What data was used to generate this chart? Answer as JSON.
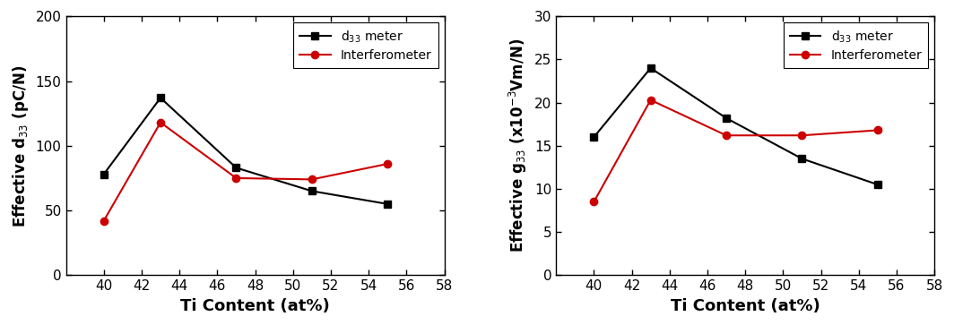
{
  "left": {
    "x": [
      40,
      43,
      47,
      51,
      55
    ],
    "black_y": [
      78,
      137,
      83,
      65,
      55
    ],
    "red_y": [
      42,
      118,
      75,
      74,
      86
    ],
    "ylabel": "Effective d$_{33}$ (pC/N)",
    "xlabel": "Ti Content (at%)",
    "ylim": [
      0,
      200
    ],
    "yticks": [
      0,
      50,
      100,
      150,
      200
    ],
    "xlim": [
      38,
      58
    ],
    "xticks": [
      40,
      42,
      44,
      46,
      48,
      50,
      52,
      54,
      56,
      58
    ]
  },
  "right": {
    "x": [
      40,
      43,
      47,
      51,
      55
    ],
    "black_y": [
      16.0,
      24.0,
      18.2,
      13.5,
      10.5
    ],
    "red_y": [
      8.5,
      20.3,
      16.2,
      16.2,
      16.8
    ],
    "ylabel": "Effective g$_{33}$ (x10$^{-3}$Vm/N)",
    "xlabel": "Ti Content (at%)",
    "ylim": [
      0,
      30
    ],
    "yticks": [
      0,
      5,
      10,
      15,
      20,
      25,
      30
    ],
    "xlim": [
      38,
      58
    ],
    "xticks": [
      40,
      42,
      44,
      46,
      48,
      50,
      52,
      54,
      56,
      58
    ]
  },
  "legend_black": "d$_{33}$ meter",
  "legend_red": "Interferometer",
  "black_color": "#000000",
  "red_color": "#cc0000",
  "marker_black": "s",
  "marker_red": "o",
  "linewidth": 1.5,
  "markersize": 6,
  "fig_width": 10.64,
  "fig_height": 3.63,
  "dpi": 100
}
